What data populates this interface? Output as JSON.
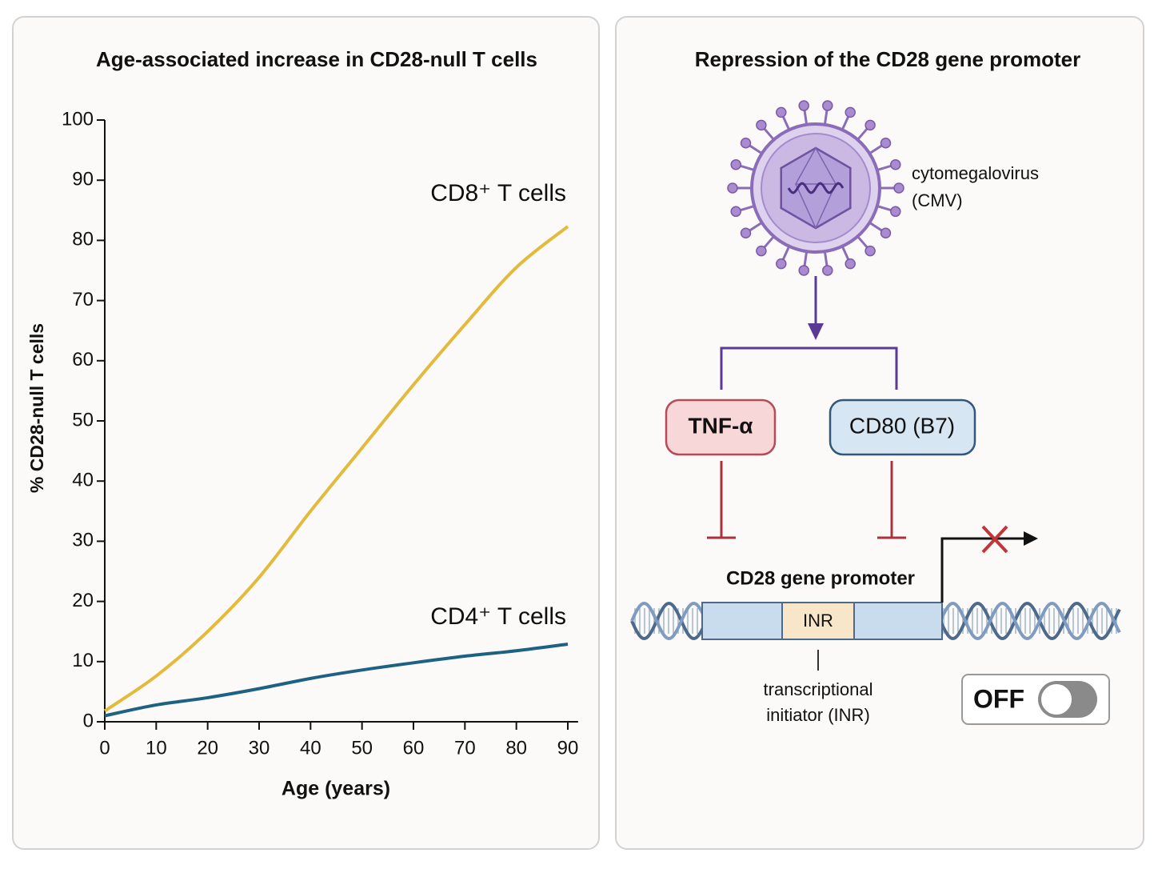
{
  "chart_data": {
    "type": "line",
    "title": "Age-associated increase in CD28-null T cells",
    "x_label": "Age (years)",
    "y_label": "% CD28-null T cells",
    "x": [
      0,
      10,
      20,
      30,
      40,
      50,
      60,
      70,
      80,
      90
    ],
    "series": [
      {
        "name": "CD8⁺ T cells",
        "color": "#e2bb3c",
        "values": [
          1.8,
          7.6,
          15,
          24,
          35,
          45.5,
          56,
          66,
          75.5,
          82.3
        ]
      },
      {
        "name": "CD4⁺ T cells",
        "color": "#1e6283",
        "values": [
          1,
          2.8,
          4,
          5.5,
          7.2,
          8.6,
          9.8,
          10.9,
          11.8,
          12.9
        ]
      }
    ],
    "xlim": [
      0,
      92
    ],
    "xticks": [
      0,
      10,
      20,
      30,
      40,
      50,
      60,
      70,
      80,
      90
    ],
    "ylim": [
      0,
      100
    ],
    "yticks": [
      0,
      10,
      20,
      30,
      40,
      50,
      60,
      70,
      80,
      90,
      100
    ]
  },
  "diagram": {
    "title": "Repression of the CD28 gene promoter",
    "virus": {
      "label": "cytomegalovirus",
      "abbreviation": "(CMV)"
    },
    "nodes": [
      {
        "label": "TNF-α"
      },
      {
        "label": "CD80 (B7)"
      }
    ],
    "promoter": {
      "label": "CD28 gene promoter",
      "element": "INR",
      "caption": [
        "transcriptional",
        "initiator (INR)"
      ]
    },
    "switch": {
      "label": "OFF"
    }
  }
}
